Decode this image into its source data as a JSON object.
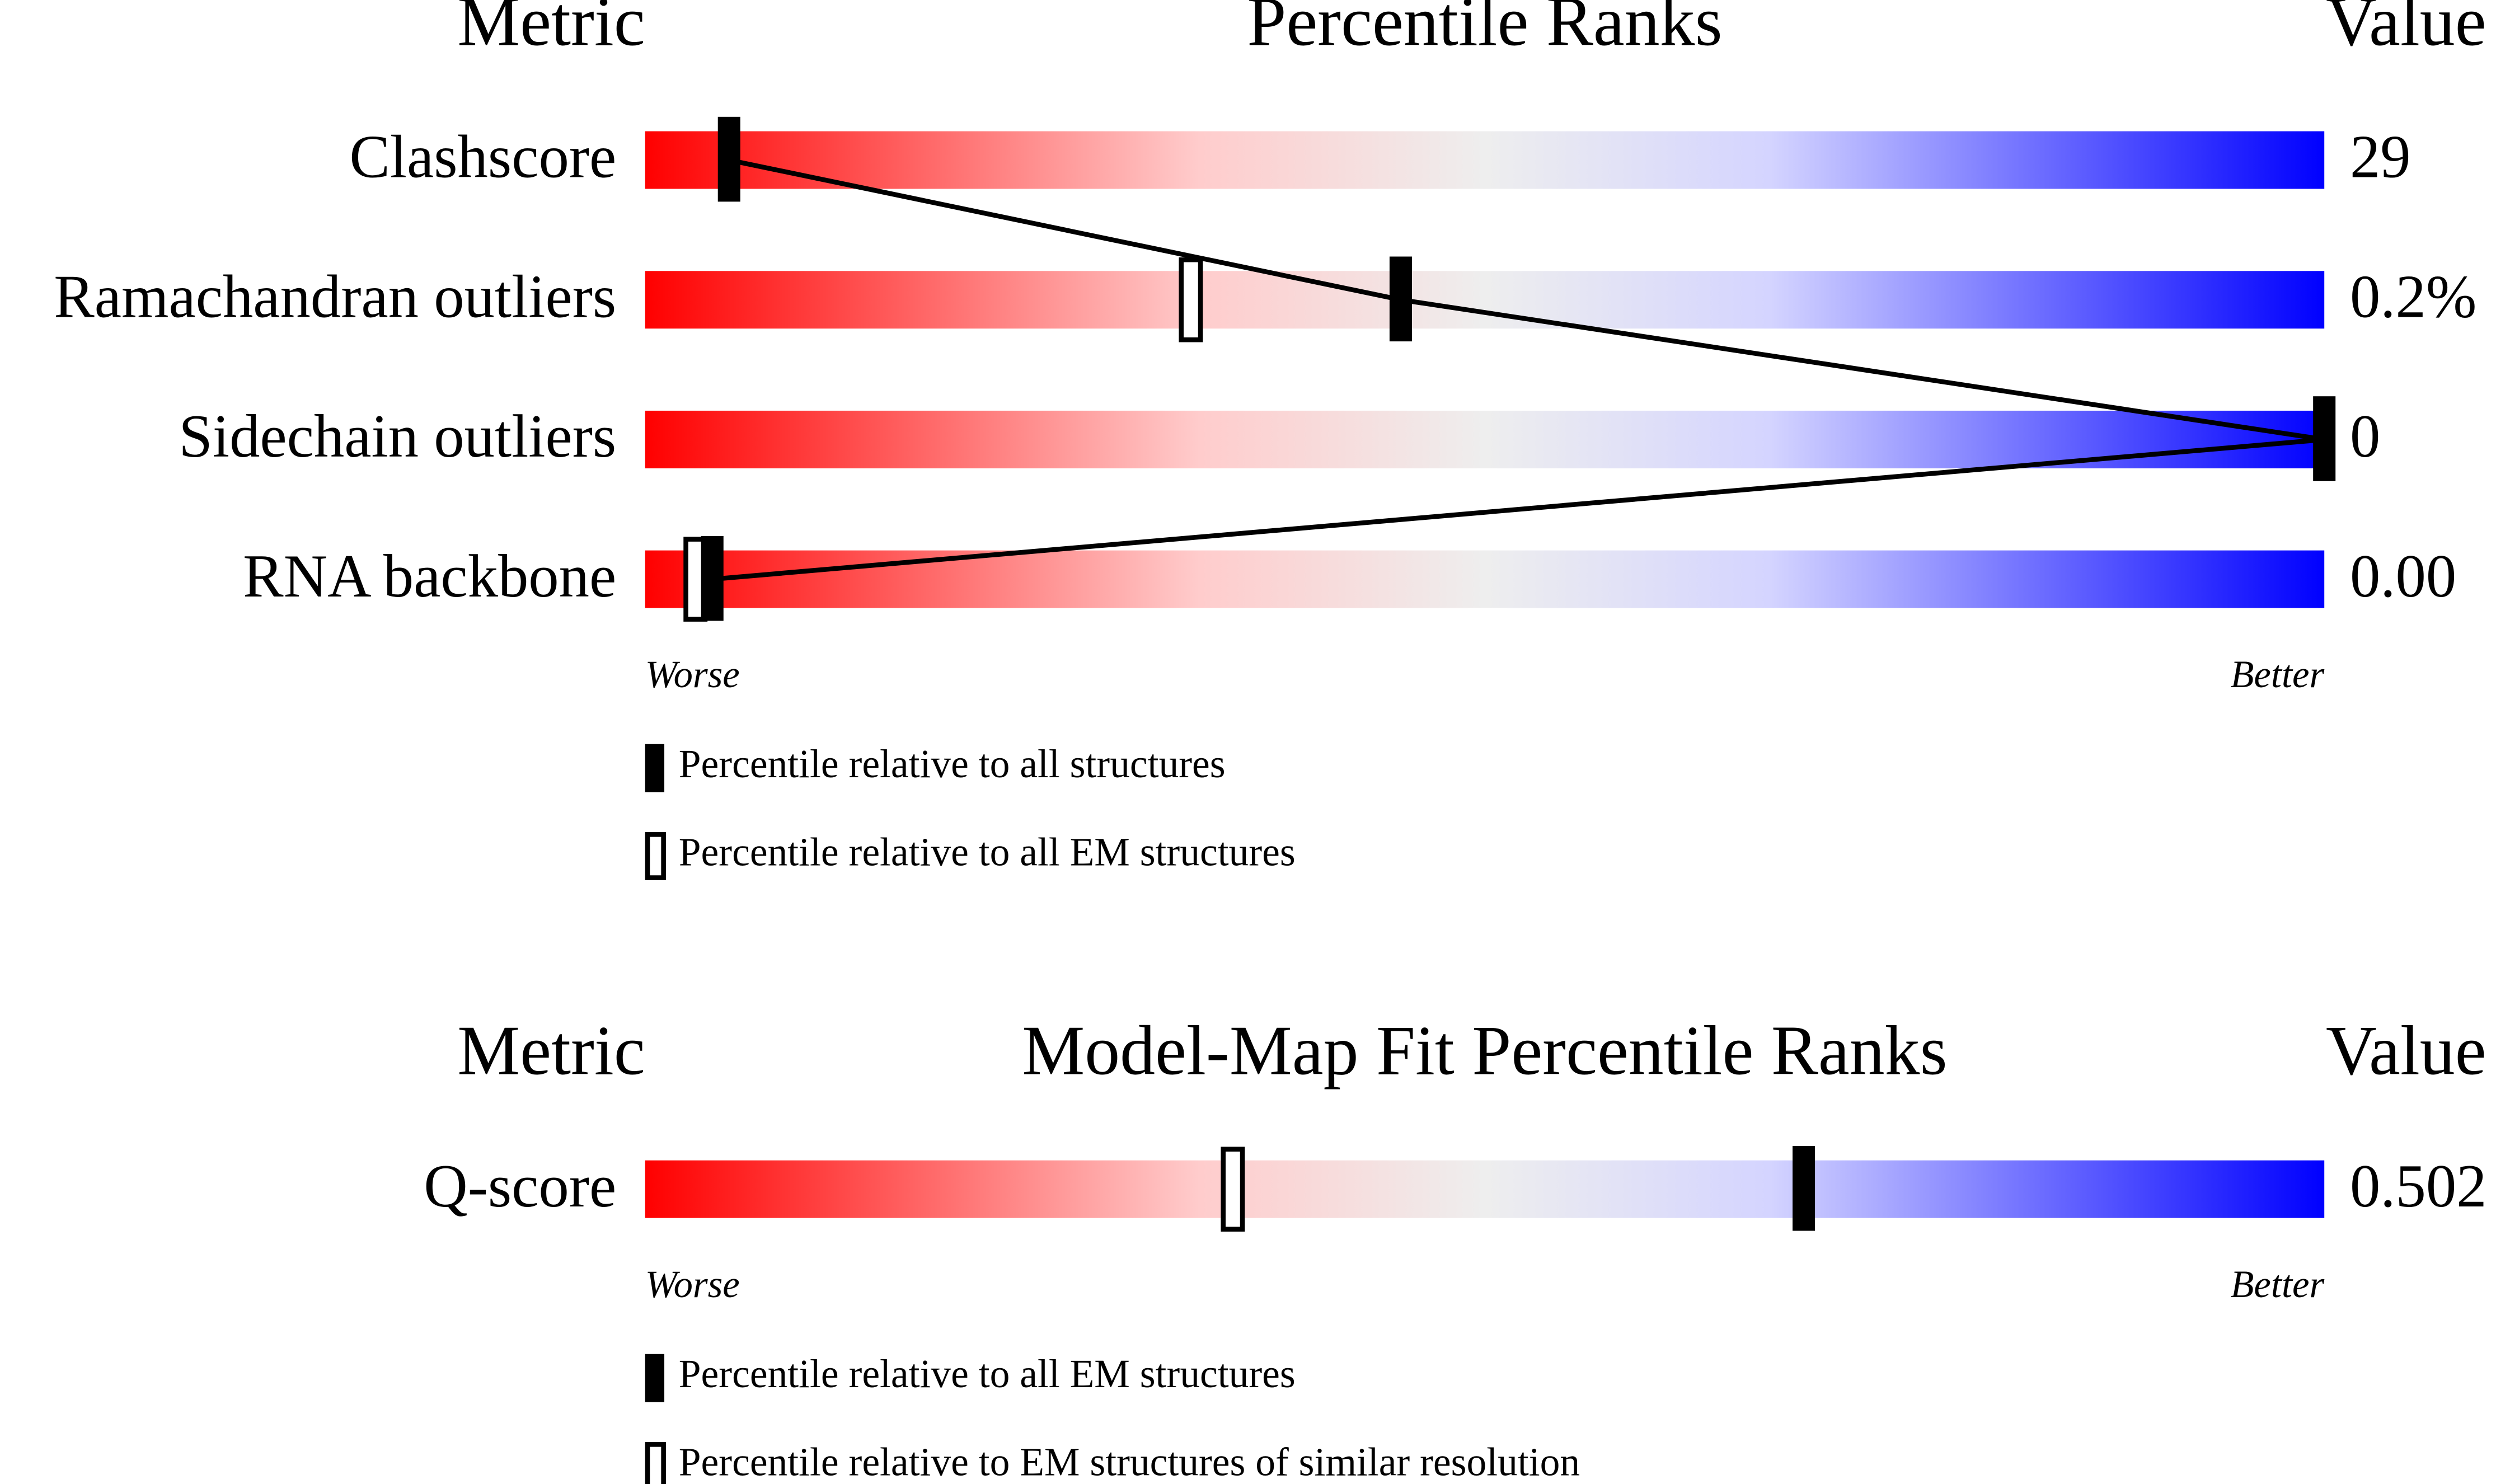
{
  "panels": [
    {
      "header": {
        "metric": "Metric",
        "title": "Percentile Ranks",
        "value": "Value"
      },
      "rows": [
        {
          "label": "Clashscore",
          "value": "29",
          "all": 5,
          "em": null
        },
        {
          "label": "Ramachandran outliers",
          "value": "0.2%",
          "all": 45,
          "em": 32.5
        },
        {
          "label": "Sidechain outliers",
          "value": "0",
          "all": 100,
          "em": null
        },
        {
          "label": "RNA backbone",
          "value": "0.00",
          "all": 4,
          "em": 3
        }
      ],
      "worse": "Worse",
      "better": "Better",
      "legend": {
        "filled": "Percentile relative to all structures",
        "open": "Percentile relative to all EM structures"
      },
      "connect": true
    },
    {
      "header": {
        "metric": "Metric",
        "title": "Model-Map Fit Percentile Ranks",
        "value": "Value"
      },
      "rows": [
        {
          "label": "Q-score",
          "value": "0.502",
          "all": 69,
          "em": 35
        }
      ],
      "worse": "Worse",
      "better": "Better",
      "legend": {
        "filled": "Percentile relative to all EM structures",
        "open": "Percentile relative to EM structures of similar resolution"
      },
      "connect": false
    }
  ]
}
